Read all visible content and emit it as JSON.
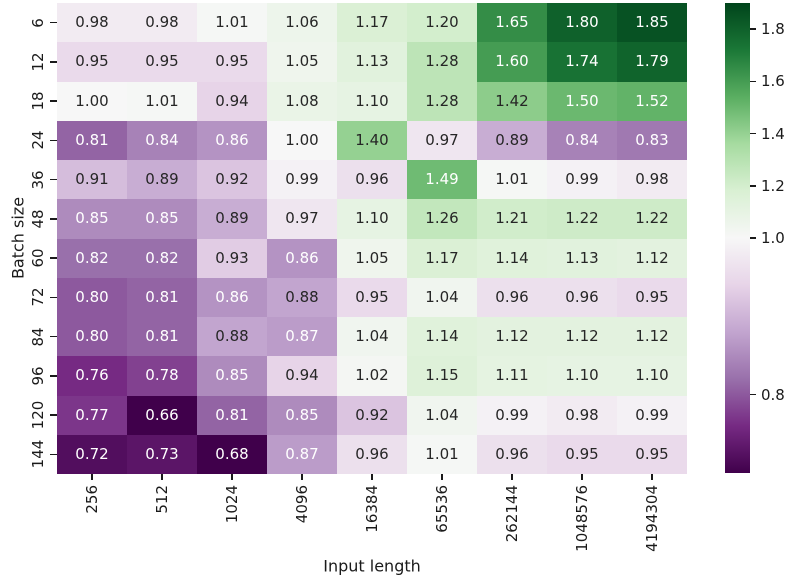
{
  "figure": {
    "background": "#ffffff",
    "text_color": "#1a1a1a"
  },
  "chart_data": {
    "type": "heatmap",
    "title": "",
    "xlabel": "Input length",
    "ylabel": "Batch size",
    "x_categories": [
      "256",
      "512",
      "1024",
      "4096",
      "16384",
      "65536",
      "262144",
      "1048576",
      "4194304"
    ],
    "y_categories": [
      "6",
      "12",
      "18",
      "24",
      "36",
      "48",
      "60",
      "72",
      "84",
      "96",
      "120",
      "144"
    ],
    "values": [
      [
        0.98,
        0.98,
        1.01,
        1.06,
        1.17,
        1.2,
        1.65,
        1.8,
        1.85
      ],
      [
        0.95,
        0.95,
        0.95,
        1.05,
        1.13,
        1.28,
        1.6,
        1.74,
        1.79
      ],
      [
        1.0,
        1.01,
        0.94,
        1.08,
        1.1,
        1.28,
        1.42,
        1.5,
        1.52
      ],
      [
        0.81,
        0.84,
        0.86,
        1.0,
        1.4,
        0.97,
        0.89,
        0.84,
        0.83
      ],
      [
        0.91,
        0.89,
        0.92,
        0.99,
        0.96,
        1.49,
        1.01,
        0.99,
        0.98
      ],
      [
        0.85,
        0.85,
        0.89,
        0.97,
        1.1,
        1.26,
        1.21,
        1.22,
        1.22
      ],
      [
        0.82,
        0.82,
        0.93,
        0.86,
        1.05,
        1.17,
        1.14,
        1.13,
        1.12
      ],
      [
        0.8,
        0.81,
        0.86,
        0.88,
        0.95,
        1.04,
        0.96,
        0.96,
        0.95
      ],
      [
        0.8,
        0.81,
        0.88,
        0.87,
        1.04,
        1.14,
        1.12,
        1.12,
        1.12
      ],
      [
        0.76,
        0.78,
        0.85,
        0.94,
        1.02,
        1.15,
        1.11,
        1.1,
        1.1
      ],
      [
        0.77,
        0.66,
        0.81,
        0.85,
        0.92,
        1.04,
        0.99,
        0.98,
        0.99
      ],
      [
        0.72,
        0.73,
        0.68,
        0.87,
        0.96,
        1.01,
        0.96,
        0.95,
        0.95
      ]
    ],
    "value_decimals": 2,
    "colormap": {
      "name": "PRGn",
      "stops": [
        "#40004b",
        "#762a83",
        "#9970ab",
        "#c2a5cf",
        "#e7d4e8",
        "#f7f7f7",
        "#d9f0d3",
        "#a6dba0",
        "#5aae61",
        "#1b7837",
        "#00441b"
      ]
    },
    "norm": {
      "type": "two-slope",
      "vmin": 0.7,
      "vcenter": 1.0,
      "vmax": 1.9
    },
    "colorbar": {
      "tick_labels": [
        "1.8",
        "1.6",
        "1.4",
        "1.2",
        "1.0",
        "0.8"
      ],
      "tick_values": [
        1.8,
        1.6,
        1.4,
        1.2,
        1.0,
        0.8
      ],
      "position": "right"
    },
    "annotation_colors": {
      "light_text": "#ffffff",
      "dark_text": "#262626"
    },
    "grid": false,
    "legend": false
  }
}
